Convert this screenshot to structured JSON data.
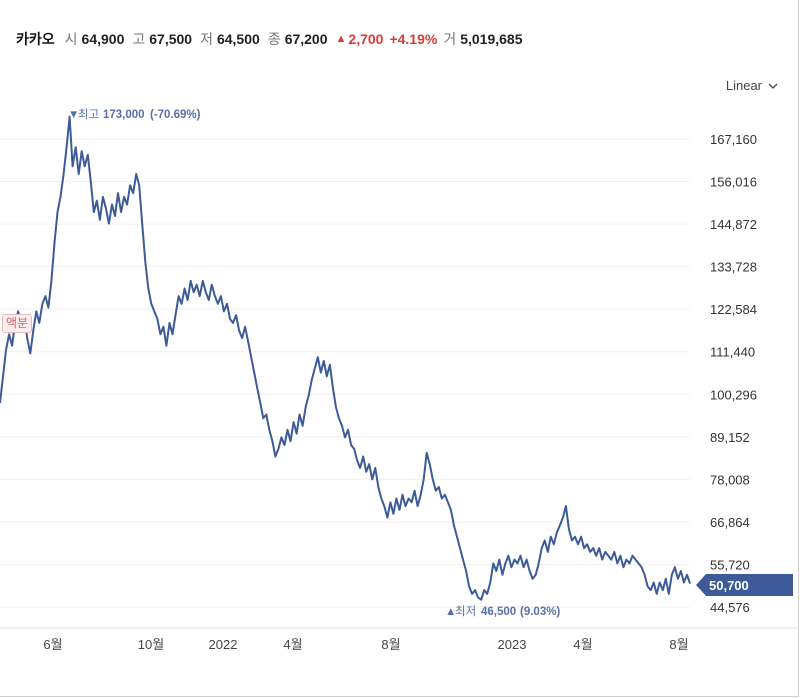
{
  "header": {
    "name": "카카오",
    "open_label": "시",
    "open": "64,900",
    "high_label": "고",
    "high": "67,500",
    "low_label": "저",
    "low": "64,500",
    "close_label": "종",
    "close": "67,200",
    "change": "2,700",
    "change_pct": "+4.19%",
    "volume_label": "거",
    "volume": "5,019,685",
    "up_color": "#d93a3a"
  },
  "scale_selector": {
    "label": "Linear",
    "icon": "chevron-down-icon"
  },
  "badge": {
    "label": "액분"
  },
  "chart_data": {
    "type": "line",
    "line_color": "#3d5a99",
    "x_ticks": [
      "6월",
      "10월",
      "2022",
      "4월",
      "8월",
      "2023",
      "4월",
      "8월"
    ],
    "y_ticks": [
      "167,160",
      "156,016",
      "144,872",
      "133,728",
      "122,584",
      "111,440",
      "100,296",
      "89,152",
      "78,008",
      "66,864",
      "55,720",
      "44,576"
    ],
    "y_tick_values": [
      167160,
      156016,
      144872,
      133728,
      122584,
      111440,
      100296,
      89152,
      78008,
      66864,
      55720,
      44576
    ],
    "current_price": "50,700",
    "current_value": 50700,
    "high_annotation": {
      "label": "최고",
      "value": "173,000",
      "pct": "(-70.69%)",
      "icon": "triangle-down-icon"
    },
    "low_annotation": {
      "label": "최저",
      "value": "46,500",
      "pct": "(9.03%)",
      "icon": "triangle-up-icon"
    },
    "series_values": [
      98000,
      105000,
      112000,
      116000,
      113000,
      119000,
      122000,
      118000,
      121000,
      115000,
      111000,
      117000,
      122000,
      119000,
      124000,
      126000,
      123000,
      130000,
      140000,
      148000,
      152000,
      158000,
      165000,
      173000,
      160000,
      165000,
      158000,
      164000,
      160000,
      163000,
      156000,
      148000,
      151000,
      146000,
      152000,
      149000,
      145000,
      150000,
      147000,
      153000,
      148000,
      152000,
      150000,
      155000,
      153000,
      158000,
      155000,
      145000,
      135000,
      128000,
      124000,
      122000,
      120000,
      116000,
      118000,
      113000,
      119000,
      116000,
      121000,
      126000,
      124000,
      128000,
      125000,
      130000,
      127000,
      129000,
      126000,
      130000,
      127000,
      125000,
      129000,
      126000,
      124000,
      126000,
      122000,
      124000,
      120000,
      119000,
      121000,
      117000,
      115000,
      118000,
      114000,
      110000,
      106000,
      102000,
      98000,
      94000,
      95000,
      91000,
      88000,
      84000,
      86000,
      89000,
      87000,
      91000,
      88000,
      93000,
      90000,
      95000,
      92000,
      97000,
      100000,
      104000,
      107000,
      110000,
      106000,
      109000,
      105000,
      108000,
      102000,
      97000,
      94000,
      92000,
      89000,
      91000,
      87000,
      86000,
      83000,
      81000,
      84000,
      80000,
      82000,
      78000,
      81000,
      76000,
      73000,
      71000,
      68000,
      72000,
      69000,
      73000,
      70000,
      74000,
      71000,
      73000,
      72000,
      75000,
      71000,
      74000,
      78000,
      85000,
      82000,
      78000,
      75000,
      76000,
      73000,
      74000,
      72000,
      70000,
      66000,
      63000,
      60000,
      57000,
      54000,
      50000,
      48000,
      49000,
      47000,
      46500,
      49000,
      48000,
      51000,
      56000,
      54000,
      57000,
      53000,
      56000,
      58000,
      55000,
      57000,
      56000,
      58000,
      55000,
      57000,
      54000,
      52000,
      53000,
      56000,
      60000,
      62000,
      59000,
      63000,
      61000,
      64000,
      66000,
      68000,
      71000,
      65000,
      62000,
      63000,
      61000,
      63000,
      60000,
      61000,
      59000,
      60000,
      58000,
      60000,
      57000,
      59000,
      58000,
      57000,
      59000,
      56000,
      58000,
      55000,
      57000,
      56000,
      58000,
      57000,
      56000,
      55000,
      53000,
      50000,
      49000,
      51000,
      48000,
      51000,
      49000,
      52000,
      48000,
      53000,
      55000,
      52000,
      54000,
      51000,
      53000,
      50700
    ]
  }
}
